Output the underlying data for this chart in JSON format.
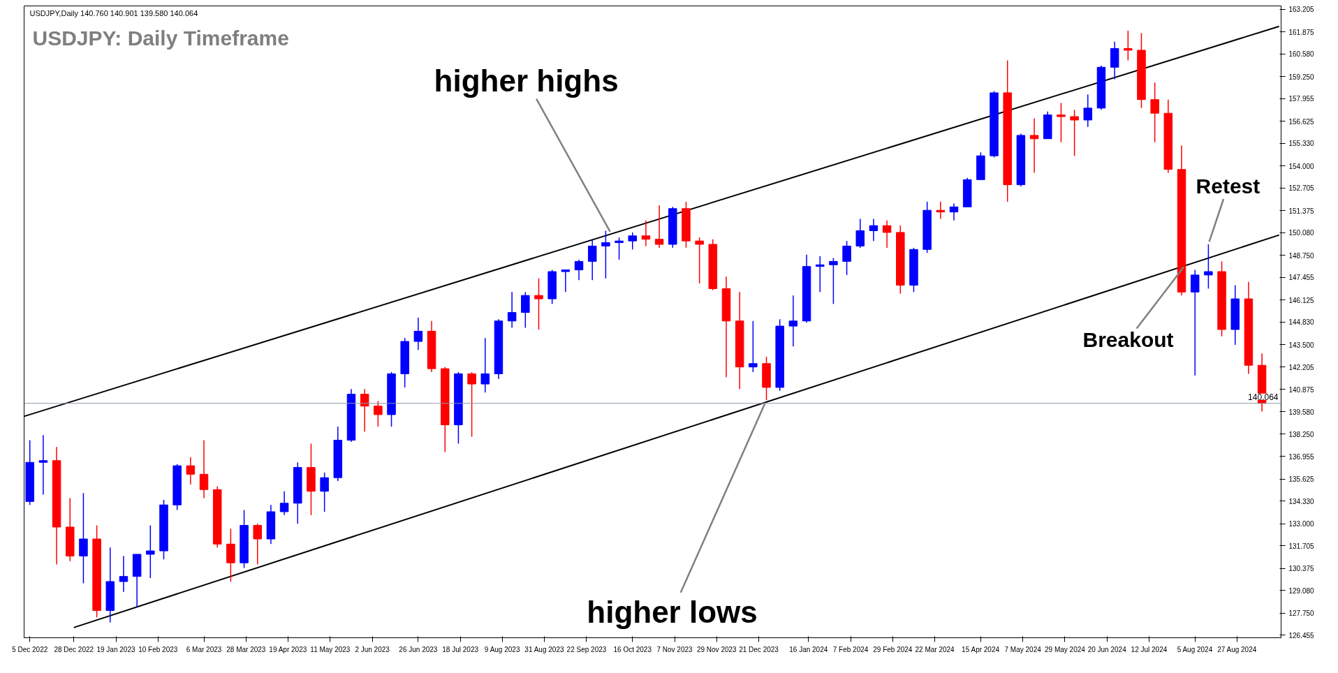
{
  "chart_data": {
    "type": "candlestick",
    "title": "USDJPY: Daily Timeframe",
    "annotations": [
      "USDJPY,Daily  140.760 140.901 139.580 140.064",
      {
        "text": "higher highs",
        "x": "2023-10-05",
        "y": 150.0
      },
      {
        "text": "higher lows",
        "x": "2023-12-25",
        "y": 140.25
      },
      {
        "text": "Breakout",
        "x": "2024-07-31",
        "y": 148.2
      },
      {
        "text": "Retest",
        "x": "2024-08-12",
        "y": 149.4
      }
    ],
    "series": [
      {
        "color": "#0000ff",
        "x": [
          "2022-12-05",
          "2022-12-12",
          "2023-01-02",
          "2023-01-16",
          "2023-01-23",
          "2023-01-30",
          "2023-02-06",
          "2023-02-13",
          "2023-02-20",
          "2023-03-27",
          "2023-04-10",
          "2023-04-17",
          "2023-04-24",
          "2023-05-08",
          "2023-05-15",
          "2023-05-22",
          "2023-06-12",
          "2023-06-19",
          "2023-06-26",
          "2023-07-17",
          "2023-07-31",
          "2023-08-07",
          "2023-08-14",
          "2023-08-21",
          "2023-09-04",
          "2023-09-11",
          "2023-09-18",
          "2023-09-25",
          "2023-10-02",
          "2023-10-09",
          "2023-10-16",
          "2023-11-06",
          "2023-12-18",
          "2024-01-01",
          "2024-01-08",
          "2024-01-15",
          "2024-01-22",
          "2024-01-29",
          "2024-02-05",
          "2024-02-12",
          "2024-02-19",
          "2024-03-11",
          "2024-03-18",
          "2024-04-01",
          "2024-04-08",
          "2024-04-15",
          "2024-04-22",
          "2024-05-06",
          "2024-05-20",
          "2024-06-10",
          "2024-06-17",
          "2024-06-24",
          "2024-08-05",
          "2024-08-12",
          "2024-08-26"
        ],
        "ohlc": [
          [
            134.3,
            137.9,
            134.1,
            136.6
          ],
          [
            136.6,
            138.2,
            134.7,
            136.7
          ],
          [
            131.1,
            134.8,
            129.5,
            132.1
          ],
          [
            127.9,
            131.6,
            127.2,
            129.6
          ],
          [
            129.6,
            131.1,
            129.0,
            129.9
          ],
          [
            129.9,
            131.2,
            128.1,
            131.2
          ],
          [
            131.2,
            132.9,
            129.8,
            131.4
          ],
          [
            131.4,
            134.4,
            130.9,
            134.1
          ],
          [
            134.1,
            136.5,
            133.8,
            136.4
          ],
          [
            130.7,
            133.8,
            130.4,
            132.9
          ],
          [
            132.1,
            134.1,
            131.8,
            133.7
          ],
          [
            133.7,
            134.9,
            133.5,
            134.2
          ],
          [
            134.2,
            136.6,
            133.0,
            136.3
          ],
          [
            134.9,
            136.0,
            133.7,
            135.7
          ],
          [
            135.7,
            138.7,
            135.5,
            137.9
          ],
          [
            137.9,
            140.9,
            137.8,
            140.6
          ],
          [
            139.4,
            141.9,
            138.7,
            141.8
          ],
          [
            141.8,
            143.9,
            141.0,
            143.7
          ],
          [
            143.7,
            145.1,
            143.2,
            144.3
          ],
          [
            138.8,
            141.9,
            137.7,
            141.8
          ],
          [
            141.2,
            143.9,
            140.7,
            141.8
          ],
          [
            141.8,
            145.0,
            141.5,
            144.9
          ],
          [
            144.9,
            146.6,
            144.5,
            145.4
          ],
          [
            145.4,
            146.6,
            144.5,
            146.4
          ],
          [
            146.2,
            147.9,
            145.9,
            147.8
          ],
          [
            147.8,
            147.9,
            146.6,
            147.9
          ],
          [
            147.9,
            148.5,
            147.3,
            148.4
          ],
          [
            148.4,
            149.7,
            147.3,
            149.3
          ],
          [
            149.3,
            150.2,
            147.4,
            149.5
          ],
          [
            149.5,
            149.8,
            148.5,
            149.6
          ],
          [
            149.6,
            150.1,
            149.1,
            149.9
          ],
          [
            149.4,
            151.6,
            149.2,
            151.5
          ],
          [
            142.2,
            144.9,
            141.9,
            142.4
          ],
          [
            141.0,
            145.0,
            140.8,
            144.6
          ],
          [
            144.6,
            146.4,
            143.4,
            144.9
          ],
          [
            144.9,
            148.8,
            144.8,
            148.1
          ],
          [
            148.1,
            148.7,
            146.6,
            148.2
          ],
          [
            148.2,
            148.6,
            145.9,
            148.4
          ],
          [
            148.4,
            149.6,
            147.6,
            149.3
          ],
          [
            149.3,
            150.9,
            149.2,
            150.2
          ],
          [
            150.2,
            150.9,
            149.6,
            150.5
          ],
          [
            147.0,
            149.2,
            146.6,
            149.1
          ],
          [
            149.1,
            151.9,
            148.9,
            151.4
          ],
          [
            151.3,
            151.8,
            150.8,
            151.6
          ],
          [
            151.6,
            153.3,
            151.6,
            153.2
          ],
          [
            153.2,
            154.8,
            153.2,
            154.6
          ],
          [
            154.6,
            158.4,
            154.5,
            158.3
          ],
          [
            152.9,
            155.9,
            152.8,
            155.8
          ],
          [
            155.6,
            157.2,
            155.6,
            157.0
          ],
          [
            156.7,
            158.2,
            156.3,
            157.4
          ],
          [
            157.4,
            159.9,
            157.3,
            159.8
          ],
          [
            159.8,
            161.3,
            159.1,
            160.9
          ],
          [
            146.6,
            147.9,
            141.7,
            147.6
          ],
          [
            147.6,
            149.4,
            146.8,
            147.8
          ],
          [
            144.4,
            147.0,
            143.5,
            146.2
          ]
        ]
      },
      {
        "color": "#ff0000",
        "x": [
          "2022-12-19",
          "2022-12-26",
          "2023-01-09",
          "2023-02-27",
          "2023-03-06",
          "2023-03-13",
          "2023-03-20",
          "2023-04-03",
          "2023-05-01",
          "2023-05-29",
          "2023-06-05",
          "2023-07-03",
          "2023-07-10",
          "2023-07-24",
          "2023-08-28",
          "2023-10-23",
          "2023-10-30",
          "2023-11-13",
          "2023-11-20",
          "2023-11-27",
          "2023-12-04",
          "2023-12-11",
          "2023-12-25",
          "2024-02-26",
          "2024-03-04",
          "2024-03-25",
          "2024-04-29",
          "2024-05-13",
          "2024-05-27",
          "2024-06-03",
          "2024-07-01",
          "2024-07-08",
          "2024-07-15",
          "2024-07-22",
          "2024-07-29",
          "2024-08-19",
          "2024-09-02",
          "2024-09-09"
        ],
        "ohlc": [
          [
            136.7,
            137.5,
            130.6,
            132.8
          ],
          [
            132.8,
            134.5,
            130.8,
            131.1
          ],
          [
            132.1,
            132.9,
            127.5,
            127.9
          ],
          [
            136.4,
            136.9,
            135.3,
            135.9
          ],
          [
            135.9,
            137.9,
            134.5,
            135.0
          ],
          [
            135.0,
            135.2,
            131.6,
            131.8
          ],
          [
            131.8,
            132.7,
            129.6,
            130.7
          ],
          [
            132.9,
            133.0,
            130.6,
            132.1
          ],
          [
            136.3,
            137.7,
            133.5,
            134.9
          ],
          [
            140.6,
            140.9,
            138.4,
            139.9
          ],
          [
            139.9,
            140.2,
            138.7,
            139.4
          ],
          [
            144.3,
            144.9,
            141.9,
            142.1
          ],
          [
            142.1,
            142.2,
            137.2,
            138.8
          ],
          [
            141.8,
            141.9,
            138.1,
            141.2
          ],
          [
            146.4,
            147.4,
            144.4,
            146.2
          ],
          [
            149.9,
            150.8,
            149.3,
            149.7
          ],
          [
            149.7,
            151.7,
            149.2,
            149.4
          ],
          [
            151.5,
            151.9,
            149.2,
            149.6
          ],
          [
            149.6,
            149.8,
            147.1,
            149.4
          ],
          [
            149.4,
            149.7,
            146.7,
            146.8
          ],
          [
            146.8,
            147.5,
            141.6,
            144.9
          ],
          [
            144.9,
            146.6,
            140.9,
            142.2
          ],
          [
            142.4,
            142.8,
            140.25,
            141.0
          ],
          [
            150.5,
            150.8,
            149.2,
            150.1
          ],
          [
            150.1,
            150.5,
            146.5,
            147.0
          ],
          [
            151.4,
            151.9,
            150.9,
            151.3
          ],
          [
            158.3,
            160.2,
            151.9,
            152.9
          ],
          [
            155.8,
            156.8,
            153.6,
            155.6
          ],
          [
            157.0,
            157.7,
            155.4,
            156.9
          ],
          [
            156.9,
            157.3,
            154.6,
            156.7
          ],
          [
            160.9,
            161.95,
            160.2,
            160.8
          ],
          [
            160.8,
            161.8,
            157.4,
            157.9
          ],
          [
            157.9,
            158.9,
            155.4,
            157.1
          ],
          [
            157.1,
            157.9,
            153.6,
            153.8
          ],
          [
            153.8,
            155.2,
            146.4,
            146.6
          ],
          [
            147.8,
            148.4,
            144.0,
            144.4
          ],
          [
            146.2,
            147.2,
            141.8,
            142.3
          ],
          [
            142.3,
            143.0,
            139.58,
            140.064
          ]
        ]
      },
      {
        "type": "line",
        "color": "#000000",
        "x": [
          "2022-12-02",
          "2024-09-18"
        ],
        "values": [
          139.3,
          162.2
        ]
      },
      {
        "type": "line",
        "color": "#000000",
        "x": [
          "2022-12-28",
          "2024-09-18"
        ],
        "values": [
          126.9,
          149.95
        ]
      }
    ],
    "ref_lines": [
      {
        "axis": "y",
        "value": 140.064,
        "label": "140.064",
        "color": "#8c9aa8"
      }
    ],
    "xlim": [
      "2022-12-02",
      "2024-09-19"
    ],
    "ylim": [
      126.3,
      163.4
    ],
    "xticks": [
      {
        "value": "2022-12-05",
        "label": "5 Dec 2022"
      },
      {
        "value": "2022-12-28",
        "label": "28 Dec 2022"
      },
      {
        "value": "2023-01-19",
        "label": "19 Jan 2023"
      },
      {
        "value": "2023-02-10",
        "label": "10 Feb 2023"
      },
      {
        "value": "2023-03-06",
        "label": "6 Mar 2023"
      },
      {
        "value": "2023-03-28",
        "label": "28 Mar 2023"
      },
      {
        "value": "2023-04-19",
        "label": "19 Apr 2023"
      },
      {
        "value": "2023-05-11",
        "label": "11 May 2023"
      },
      {
        "value": "2023-06-02",
        "label": "2 Jun 2023"
      },
      {
        "value": "2023-06-26",
        "label": "26 Jun 2023"
      },
      {
        "value": "2023-07-18",
        "label": "18 Jul 2023"
      },
      {
        "value": "2023-08-09",
        "label": "9 Aug 2023"
      },
      {
        "value": "2023-08-31",
        "label": "31 Aug 2023"
      },
      {
        "value": "2023-09-22",
        "label": "22 Sep 2023"
      },
      {
        "value": "2023-10-16",
        "label": "16 Oct 2023"
      },
      {
        "value": "2023-11-07",
        "label": "7 Nov 2023"
      },
      {
        "value": "2023-11-29",
        "label": "29 Nov 2023"
      },
      {
        "value": "2023-12-21",
        "label": "21 Dec 2023"
      },
      {
        "value": "2024-01-16",
        "label": "16 Jan 2024"
      },
      {
        "value": "2024-02-07",
        "label": "7 Feb 2024"
      },
      {
        "value": "2024-02-29",
        "label": "29 Feb 2024"
      },
      {
        "value": "2024-03-22",
        "label": "22 Mar 2024"
      },
      {
        "value": "2024-04-15",
        "label": "15 Apr 2024"
      },
      {
        "value": "2024-05-07",
        "label": "7 May 2024"
      },
      {
        "value": "2024-05-29",
        "label": "29 May 2024"
      },
      {
        "value": "2024-06-20",
        "label": "20 Jun 2024"
      },
      {
        "value": "2024-07-12",
        "label": "12 Jul 2024"
      },
      {
        "value": "2024-08-05",
        "label": "5 Aug 2024"
      },
      {
        "value": "2024-08-27",
        "label": "27 Aug 2024"
      }
    ],
    "yticks": [
      {
        "value": 126.455,
        "label": "126.455"
      },
      {
        "value": 127.75,
        "label": "127.750"
      },
      {
        "value": 129.08,
        "label": "129.080"
      },
      {
        "value": 130.375,
        "label": "130.375"
      },
      {
        "value": 131.705,
        "label": "131.705"
      },
      {
        "value": 133.0,
        "label": "133.000"
      },
      {
        "value": 134.33,
        "label": "134.330"
      },
      {
        "value": 135.625,
        "label": "135.625"
      },
      {
        "value": 136.955,
        "label": "136.955"
      },
      {
        "value": 138.25,
        "label": "138.250"
      },
      {
        "value": 139.58,
        "label": "139.580"
      },
      {
        "value": 140.875,
        "label": "140.875"
      },
      {
        "value": 142.205,
        "label": "142.205"
      },
      {
        "value": 143.5,
        "label": "143.500"
      },
      {
        "value": 144.83,
        "label": "144.830"
      },
      {
        "value": 146.125,
        "label": "146.125"
      },
      {
        "value": 147.455,
        "label": "147.455"
      },
      {
        "value": 148.75,
        "label": "148.750"
      },
      {
        "value": 150.08,
        "label": "150.080"
      },
      {
        "value": 151.375,
        "label": "151.375"
      },
      {
        "value": 152.705,
        "label": "152.705"
      },
      {
        "value": 154.0,
        "label": "154.000"
      },
      {
        "value": 155.33,
        "label": "155.330"
      },
      {
        "value": 156.625,
        "label": "156.625"
      },
      {
        "value": 157.955,
        "label": "157.955"
      },
      {
        "value": 159.25,
        "label": "159.250"
      },
      {
        "value": 160.58,
        "label": "160.580"
      },
      {
        "value": 161.875,
        "label": "161.875"
      },
      {
        "value": 163.205,
        "label": "163.205"
      }
    ]
  }
}
